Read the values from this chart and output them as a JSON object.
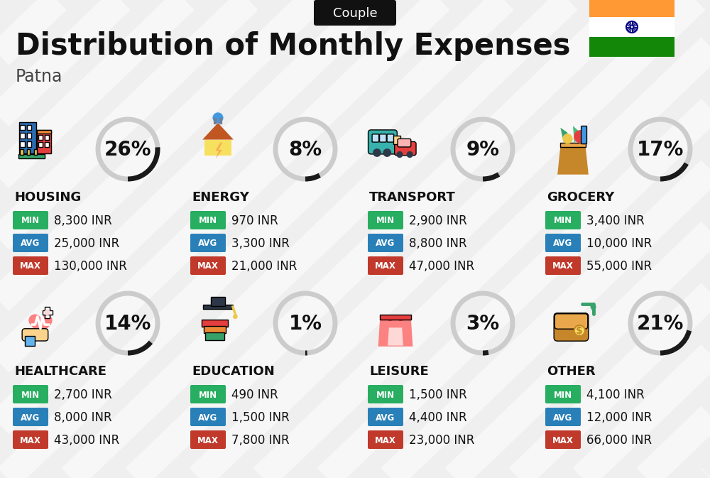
{
  "title": "Distribution of Monthly Expenses",
  "subtitle": "Patna",
  "badge": "Couple",
  "bg_color": "#efefef",
  "categories": [
    {
      "name": "HOUSING",
      "percent": 26,
      "min_val": "8,300 INR",
      "avg_val": "25,000 INR",
      "max_val": "130,000 INR",
      "icon_type": "housing",
      "row": 0,
      "col": 0
    },
    {
      "name": "ENERGY",
      "percent": 8,
      "min_val": "970 INR",
      "avg_val": "3,300 INR",
      "max_val": "21,000 INR",
      "icon_type": "energy",
      "row": 0,
      "col": 1
    },
    {
      "name": "TRANSPORT",
      "percent": 9,
      "min_val": "2,900 INR",
      "avg_val": "8,800 INR",
      "max_val": "47,000 INR",
      "icon_type": "transport",
      "row": 0,
      "col": 2
    },
    {
      "name": "GROCERY",
      "percent": 17,
      "min_val": "3,400 INR",
      "avg_val": "10,000 INR",
      "max_val": "55,000 INR",
      "icon_type": "grocery",
      "row": 0,
      "col": 3
    },
    {
      "name": "HEALTHCARE",
      "percent": 14,
      "min_val": "2,700 INR",
      "avg_val": "8,000 INR",
      "max_val": "43,000 INR",
      "icon_type": "healthcare",
      "row": 1,
      "col": 0
    },
    {
      "name": "EDUCATION",
      "percent": 1,
      "min_val": "490 INR",
      "avg_val": "1,500 INR",
      "max_val": "7,800 INR",
      "icon_type": "education",
      "row": 1,
      "col": 1
    },
    {
      "name": "LEISURE",
      "percent": 3,
      "min_val": "1,500 INR",
      "avg_val": "4,400 INR",
      "max_val": "23,000 INR",
      "icon_type": "leisure",
      "row": 1,
      "col": 2
    },
    {
      "name": "OTHER",
      "percent": 21,
      "min_val": "4,100 INR",
      "avg_val": "12,000 INR",
      "max_val": "66,000 INR",
      "icon_type": "other",
      "row": 1,
      "col": 3
    }
  ],
  "min_color": "#27ae60",
  "avg_color": "#2980b9",
  "max_color": "#c0392b",
  "arc_dark": "#1a1a1a",
  "arc_light": "#cccccc",
  "title_fontsize": 30,
  "subtitle_fontsize": 17,
  "badge_fontsize": 13,
  "cat_fontsize": 13,
  "val_fontsize": 12,
  "pct_fontsize": 20
}
